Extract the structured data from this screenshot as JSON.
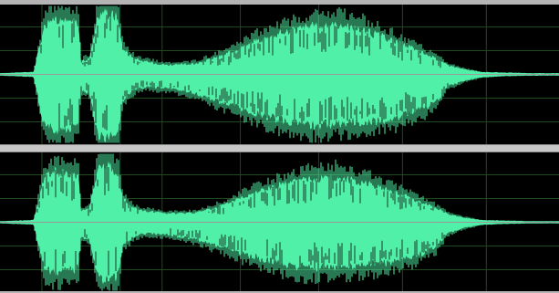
{
  "editor": {
    "waveform_color": "#50f0a8",
    "background_color": "#000000",
    "grid_color": "#1e4a1e",
    "centerline_color": "#9a9a9a",
    "separator_color": "#c8c8c8",
    "channels": [
      {
        "id": "channel-1",
        "label": ""
      },
      {
        "id": "channel-2",
        "label": ""
      }
    ],
    "envelope": {
      "points_time": [
        0.0,
        0.06,
        0.08,
        0.1,
        0.12,
        0.14,
        0.145,
        0.16,
        0.175,
        0.19,
        0.21,
        0.22,
        0.24,
        0.26,
        0.3,
        0.35,
        0.4,
        0.45,
        0.5,
        0.55,
        0.6,
        0.65,
        0.7,
        0.74,
        0.78,
        0.8,
        0.83,
        0.86,
        0.9,
        0.95,
        1.0
      ],
      "points_upper": [
        0.02,
        0.04,
        0.8,
        0.9,
        0.85,
        0.85,
        0.2,
        0.25,
        0.95,
        0.99,
        0.9,
        0.4,
        0.25,
        0.2,
        0.15,
        0.17,
        0.3,
        0.5,
        0.65,
        0.75,
        0.8,
        0.7,
        0.55,
        0.4,
        0.25,
        0.15,
        0.08,
        0.04,
        0.03,
        0.02,
        0.02
      ],
      "points_lower": [
        0.02,
        0.04,
        0.85,
        0.9,
        0.85,
        0.8,
        0.25,
        0.3,
        0.98,
        0.99,
        0.95,
        0.4,
        0.25,
        0.2,
        0.22,
        0.3,
        0.45,
        0.6,
        0.72,
        0.8,
        0.78,
        0.75,
        0.7,
        0.6,
        0.45,
        0.2,
        0.1,
        0.05,
        0.03,
        0.02,
        0.02
      ]
    }
  }
}
